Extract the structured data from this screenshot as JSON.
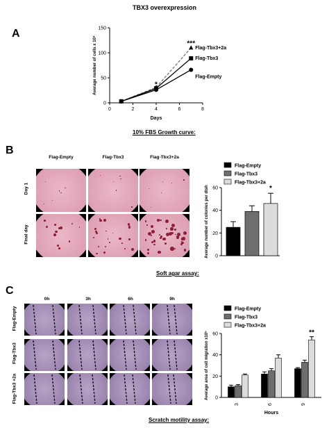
{
  "figure": {
    "title": "TBX3 overexpression",
    "panels": {
      "a": {
        "letter": "A",
        "caption": "10% FBS  Growth curve:"
      },
      "b": {
        "letter": "B",
        "caption": "Soft agar assay:",
        "columns": [
          "Flag-Empty",
          "Flag-Tbx3",
          "Flag-Tbx3+2a"
        ],
        "rows": [
          "Day 1",
          "Final day"
        ]
      },
      "c": {
        "letter": "C",
        "caption": "Scratch motility assay:",
        "columns": [
          "0h",
          "3h",
          "6h",
          "9h"
        ],
        "rows": [
          "Flag-Empty",
          "Flag-Tbx3",
          "Flag-Tbx3 +2a"
        ]
      }
    }
  },
  "chart_data": [
    {
      "type": "line",
      "xlabel": "Days",
      "ylabel": "Average number of cells x 10⁴",
      "xlim": [
        0,
        8
      ],
      "ylim": [
        0,
        150
      ],
      "xticks": [
        "0",
        "2",
        "4",
        "6",
        "8"
      ],
      "yticks": [
        "0",
        "50",
        "100",
        "150"
      ],
      "series": [
        {
          "name": "Flag-Tbx3+2a",
          "marker": "triangle",
          "dash": true,
          "x": [
            1,
            4,
            7
          ],
          "y": [
            3,
            31,
            110
          ]
        },
        {
          "name": "Flag-Tbx3",
          "marker": "square",
          "dash": false,
          "x": [
            1,
            4,
            7
          ],
          "y": [
            3,
            29,
            89
          ]
        },
        {
          "name": "Flag-Empty",
          "marker": "circle",
          "dash": false,
          "x": [
            1,
            4,
            7
          ],
          "y": [
            3,
            26,
            66
          ]
        }
      ],
      "annotations": [
        {
          "text": "*",
          "x": 4,
          "y": 38
        },
        {
          "text": "***",
          "x": 7,
          "y": 120
        }
      ]
    },
    {
      "type": "bar",
      "ylabel": "Average number of colonies per dish",
      "ylim": [
        0,
        60
      ],
      "yticks": [
        "0",
        "20",
        "40",
        "60"
      ],
      "categories": [
        "Flag-Empty",
        "Flag-Tbx3",
        "Flag-Tbx3+2a"
      ],
      "values": [
        25,
        39,
        46
      ],
      "errors": [
        5,
        5,
        9
      ],
      "colors": [
        "#000000",
        "#6e6e6e",
        "#dcdcdc"
      ],
      "legend": [
        "Flag-Empty",
        "Flag-Tbx3",
        "Flag-Tbx3+2a"
      ],
      "annotations": [
        {
          "text": "*",
          "category": 2
        }
      ]
    },
    {
      "type": "bar",
      "xlabel": "Hours",
      "ylabel": "Average area of cell migration x10⁵",
      "ylim": [
        0,
        60
      ],
      "yticks": [
        "0",
        "20",
        "40",
        "60"
      ],
      "categories": [
        "3",
        "6",
        "9"
      ],
      "series": [
        {
          "name": "Flag-Empty",
          "color": "#000000",
          "values": [
            10,
            22,
            27
          ],
          "errors": [
            1.5,
            2,
            1
          ]
        },
        {
          "name": "Flag-Tbx3",
          "color": "#6e6e6e",
          "values": [
            11,
            25,
            33
          ],
          "errors": [
            1,
            2,
            2
          ]
        },
        {
          "name": "Flag-Tbx3+2a",
          "color": "#dcdcdc",
          "values": [
            21,
            37,
            54
          ],
          "errors": [
            1,
            3,
            3
          ]
        }
      ],
      "annotations": [
        {
          "text": "**",
          "category": 2
        }
      ]
    }
  ]
}
